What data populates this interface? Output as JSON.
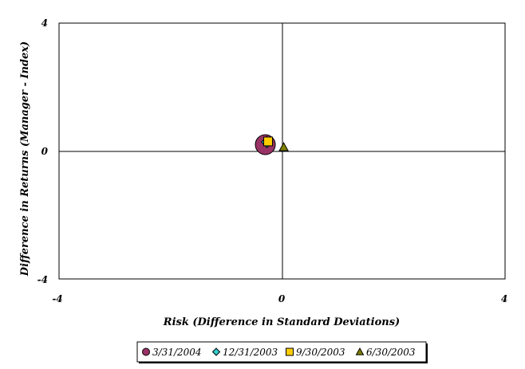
{
  "chart_data": {
    "type": "scatter",
    "xlabel": "Risk (Difference in Standard Deviations)",
    "ylabel": "Difference in Returns (Manager - Index)",
    "xlim": [
      -4,
      4
    ],
    "ylim": [
      -4,
      4
    ],
    "x_ticks": [
      "-4",
      "0",
      "4"
    ],
    "y_ticks": [
      "4",
      "0",
      "-4"
    ],
    "grid": false,
    "legend_position": "bottom",
    "series": [
      {
        "name": "3/31/2004",
        "marker": "circle",
        "color": "#993366",
        "points": [
          {
            "x": -0.3,
            "y": 0.2
          }
        ]
      },
      {
        "name": "12/31/2003",
        "marker": "diamond",
        "color": "#33CCCC",
        "points": [
          {
            "x": -0.27,
            "y": 0.28
          }
        ]
      },
      {
        "name": "9/30/2003",
        "marker": "square",
        "color": "#FFCC00",
        "points": [
          {
            "x": -0.25,
            "y": 0.3
          }
        ]
      },
      {
        "name": "6/30/2003",
        "marker": "triangle",
        "color": "#808000",
        "points": [
          {
            "x": 0.03,
            "y": 0.12
          }
        ]
      }
    ]
  }
}
